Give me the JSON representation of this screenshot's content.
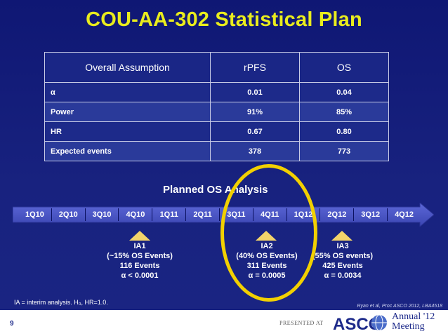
{
  "title": "COU-AA-302 Statistical Plan",
  "table": {
    "headers": [
      "Overall Assumption",
      "rPFS",
      "OS"
    ],
    "rows": [
      [
        "α",
        "0.01",
        "0.04"
      ],
      [
        "Power",
        "91%",
        "85%"
      ],
      [
        "HR",
        "0.67",
        "0.80"
      ],
      [
        "Expected events",
        "378",
        "773"
      ]
    ]
  },
  "timeline": {
    "title": "Planned OS Analysis",
    "quarters": [
      "1Q10",
      "2Q10",
      "3Q10",
      "4Q10",
      "1Q11",
      "2Q11",
      "3Q11",
      "4Q11",
      "1Q12",
      "2Q12",
      "3Q12",
      "4Q12"
    ]
  },
  "interim_analyses": [
    {
      "label": "IA1",
      "events_pct": "(~15% OS Events)",
      "events": "116 Events",
      "alpha": "α < 0.0001"
    },
    {
      "label": "IA2",
      "events_pct": "(40% OS Events)",
      "events": "311 Events",
      "alpha": "α = 0.0005"
    },
    {
      "label": "IA3",
      "events_pct": "(55% OS events)",
      "events": "425 Events",
      "alpha": "α = 0.0034"
    }
  ],
  "footnote": "IA = interim analysis. H₀, HR=1.0.",
  "citation": "Ryan et al, Proc ASCO 2012, LBA4518",
  "footer": {
    "page_number": "9",
    "presented_at": "PRESENTED AT",
    "logo_text": "ASCO",
    "annual": "Annual '12",
    "meeting": "Meeting"
  },
  "colors": {
    "title": "#e9ec1d",
    "marker": "#f2d36a",
    "highlight": "#f2d000",
    "arrow": "#4a55c9"
  }
}
